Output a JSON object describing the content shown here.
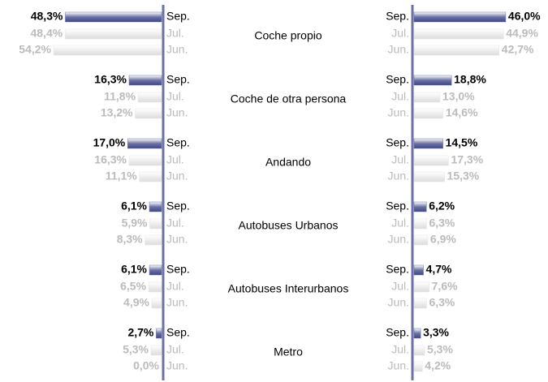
{
  "chart_data": {
    "type": "bar",
    "orientation": "horizontal",
    "categories": [
      "Coche propio",
      "Coche de otra persona",
      "Andando",
      "Autobuses Urbanos",
      "Autobuses Interurbanos",
      "Metro"
    ],
    "xlim": [
      0,
      55
    ],
    "series": [
      {
        "name": "Sep.",
        "side": "left",
        "color": "#6c72a6",
        "values": [
          48.3,
          16.3,
          17.0,
          6.1,
          6.1,
          2.7
        ],
        "value_labels": [
          "48,3%",
          "16,3%",
          "17,0%",
          "6,1%",
          "6,1%",
          "2,7%"
        ]
      },
      {
        "name": "Jul.",
        "side": "left",
        "color": "#e6e6e6",
        "values": [
          48.4,
          11.8,
          16.3,
          5.9,
          6.5,
          5.3
        ],
        "value_labels": [
          "48,4%",
          "11,8%",
          "16,3%",
          "5,9%",
          "6,5%",
          "5,3%"
        ]
      },
      {
        "name": "Jun.",
        "side": "left",
        "color": "#e6e6e6",
        "values": [
          54.2,
          13.2,
          11.1,
          8.3,
          4.9,
          0.0
        ],
        "value_labels": [
          "54,2%",
          "13,2%",
          "11,1%",
          "8,3%",
          "4,9%",
          "0,0%"
        ]
      },
      {
        "name": "Sep.",
        "side": "right",
        "color": "#6c72a6",
        "values": [
          46.0,
          18.8,
          14.5,
          6.2,
          4.7,
          3.3
        ],
        "value_labels": [
          "46,0%",
          "18,8%",
          "14,5%",
          "6,2%",
          "4,7%",
          "3,3%"
        ]
      },
      {
        "name": "Jul.",
        "side": "right",
        "color": "#e6e6e6",
        "values": [
          44.9,
          13.0,
          17.3,
          6.3,
          7.6,
          5.3
        ],
        "value_labels": [
          "44,9%",
          "13,0%",
          "17,3%",
          "6,3%",
          "7,6%",
          "5,3%"
        ]
      },
      {
        "name": "Jun.",
        "side": "right",
        "color": "#e6e6e6",
        "values": [
          42.7,
          14.6,
          15.3,
          6.9,
          6.3,
          4.2
        ],
        "value_labels": [
          "42,7%",
          "14,6%",
          "15,3%",
          "6,9%",
          "6,3%",
          "4,2%"
        ]
      }
    ]
  }
}
